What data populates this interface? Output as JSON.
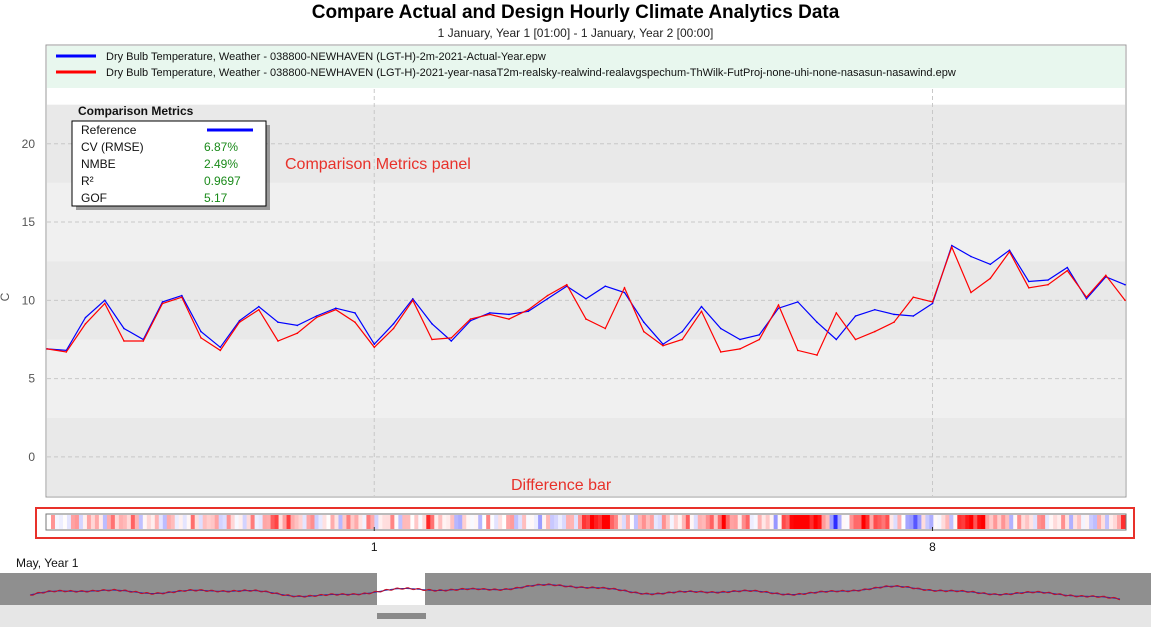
{
  "header": {
    "title": "Compare Actual and Design Hourly Climate Analytics Data",
    "subtitle": "1 January, Year 1 [01:00] - 1 January, Year 2 [00:00]"
  },
  "legend": {
    "actual": "Dry Bulb Temperature, Weather - 038800-NEWHAVEN (LGT-H)-2m-2021-Actual-Year.epw",
    "design": "Dry Bulb Temperature, Weather - 038800-NEWHAVEN (LGT-H)-2021-year-nasaT2m-realsky-realwind-realavgspechum-ThWilk-FutProj-none-uhi-none-nasasun-nasawind.epw"
  },
  "metrics_panel": {
    "title": "Comparison Metrics",
    "rows": [
      {
        "label": "Reference",
        "value": ""
      },
      {
        "label": "CV (RMSE)",
        "value": "6.87%"
      },
      {
        "label": "NMBE",
        "value": "2.49%"
      },
      {
        "label": "R²",
        "value": "0.9697"
      },
      {
        "label": "GOF",
        "value": "5.17"
      }
    ]
  },
  "annotations": {
    "metrics_panel": "Comparison Metrics panel",
    "difference_bar": "Difference bar"
  },
  "overview": {
    "label": "May, Year 1"
  },
  "colors": {
    "actual": "#0000ff",
    "design": "#ff0000",
    "annotation": "#e8312a",
    "metric_value": "#1a8a1a"
  },
  "chart_data": {
    "type": "line",
    "title": "Compare Actual and Design Hourly Climate Analytics Data",
    "subtitle": "1 January, Year 1 [01:00] - 1 January, Year 2 [00:00]",
    "ylabel": "C",
    "ylim": [
      -2.5,
      23.5
    ],
    "xlim": [
      0,
      56
    ],
    "yticks": [
      0,
      5,
      10,
      15,
      20
    ],
    "xtick_labels": [
      {
        "x": 0,
        "label": ""
      },
      {
        "x": 17,
        "label": "1"
      },
      {
        "x": 46,
        "label": "8"
      }
    ],
    "grid": true,
    "legend_position": "top",
    "series": [
      {
        "name": "Dry Bulb Temperature, Weather - 038800-NEWHAVEN (LGT-H)-2m-2021-Actual-Year.epw",
        "color": "#0000ff",
        "x": [
          0,
          1,
          2,
          3,
          4,
          5,
          6,
          7,
          8,
          9,
          10,
          11,
          12,
          13,
          14,
          15,
          16,
          17,
          18,
          19,
          20,
          21,
          22,
          23,
          24,
          25,
          26,
          27,
          28,
          29,
          30,
          31,
          32,
          33,
          34,
          35,
          36,
          37,
          38,
          39,
          40,
          41,
          42,
          43,
          44,
          45,
          46,
          47,
          48,
          49,
          50,
          51,
          52,
          53,
          54,
          55,
          56
        ],
        "values": [
          6.9,
          6.8,
          8.9,
          10.0,
          8.2,
          7.5,
          9.9,
          10.3,
          8.0,
          7.0,
          8.7,
          9.6,
          8.6,
          8.4,
          9.0,
          9.5,
          9.2,
          7.2,
          8.5,
          10.1,
          8.5,
          7.4,
          8.7,
          9.2,
          9.1,
          9.3,
          10.1,
          10.9,
          10.1,
          10.9,
          10.5,
          8.6,
          7.2,
          8.0,
          9.6,
          8.2,
          7.5,
          7.8,
          9.5,
          9.9,
          8.6,
          7.5,
          9.0,
          9.4,
          9.1,
          9.0,
          9.8,
          13.5,
          12.8,
          12.3,
          13.2,
          11.2,
          11.3,
          12.1,
          10.1,
          11.5,
          11.0
        ]
      },
      {
        "name": "Dry Bulb Temperature, Weather - 038800-NEWHAVEN (LGT-H)-2021-year-nasaT2m-realsky-realwind-realavgspechum-ThWilk-FutProj-none-uhi-none-nasasun-nasawind.epw",
        "color": "#ff0000",
        "x": [
          0,
          1,
          2,
          3,
          4,
          5,
          6,
          7,
          8,
          9,
          10,
          11,
          12,
          13,
          14,
          15,
          16,
          17,
          18,
          19,
          20,
          21,
          22,
          23,
          24,
          25,
          26,
          27,
          28,
          29,
          30,
          31,
          32,
          33,
          34,
          35,
          36,
          37,
          38,
          39,
          40,
          41,
          42,
          43,
          44,
          45,
          46,
          47,
          48,
          49,
          50,
          51,
          52,
          53,
          54,
          55,
          56
        ],
        "values": [
          6.9,
          6.7,
          8.5,
          9.8,
          7.4,
          7.4,
          9.8,
          10.2,
          7.6,
          6.8,
          8.6,
          9.4,
          7.4,
          7.9,
          8.9,
          9.4,
          8.6,
          7.0,
          8.2,
          10.0,
          7.5,
          7.6,
          8.8,
          9.1,
          8.8,
          9.4,
          10.3,
          11.0,
          8.8,
          8.2,
          10.8,
          8.0,
          7.1,
          7.5,
          9.3,
          6.7,
          6.9,
          7.5,
          9.7,
          6.8,
          6.5,
          9.2,
          7.5,
          8.0,
          8.6,
          10.2,
          9.9,
          13.4,
          10.5,
          11.4,
          13.1,
          10.8,
          11.0,
          11.9,
          10.2,
          11.6,
          10.0
        ]
      }
    ],
    "difference_bar_ticks": [
      "1",
      "8"
    ]
  }
}
